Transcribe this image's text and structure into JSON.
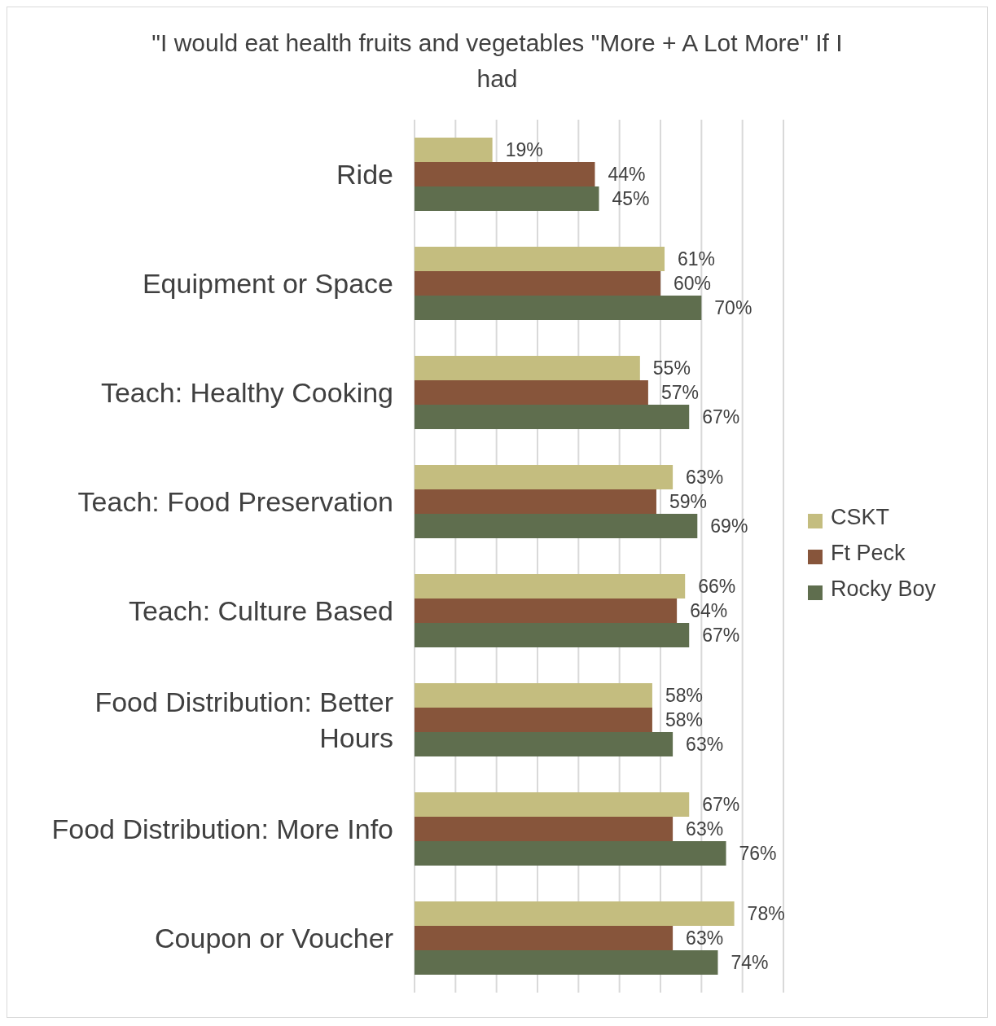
{
  "chart_data": {
    "type": "bar",
    "orientation": "horizontal",
    "title": "\"I would eat health fruits and vegetables \"More + A Lot More\" If I had",
    "categories": [
      "Ride",
      "Equipment or Space",
      "Teach: Healthy Cooking",
      "Teach: Food Preservation",
      "Teach: Culture Based",
      "Food Distribution: Better Hours",
      "Food Distribution: More Info",
      "Coupon or Voucher"
    ],
    "series": [
      {
        "name": "CSKT",
        "color": "#c4bd7f",
        "values": [
          19,
          61,
          55,
          63,
          66,
          58,
          67,
          78
        ],
        "value_labels": [
          "19%",
          "61%",
          "55%",
          "63%",
          "66%",
          "58%",
          "67%",
          "78%"
        ]
      },
      {
        "name": "Ft Peck",
        "color": "#87553b",
        "values": [
          44,
          60,
          57,
          59,
          64,
          58,
          63,
          63
        ],
        "value_labels": [
          "44%",
          "60%",
          "57%",
          "59%",
          "64%",
          "58%",
          "63%",
          "63%"
        ]
      },
      {
        "name": "Rocky Boy",
        "color": "#5f6e4e",
        "values": [
          45,
          70,
          67,
          69,
          67,
          63,
          76,
          74
        ],
        "value_labels": [
          "45%",
          "70%",
          "67%",
          "69%",
          "67%",
          "63%",
          "76%",
          "74%"
        ]
      }
    ],
    "xlim": [
      0,
      90
    ],
    "tick_labels": "y",
    "grid": "x",
    "legend": "right"
  }
}
